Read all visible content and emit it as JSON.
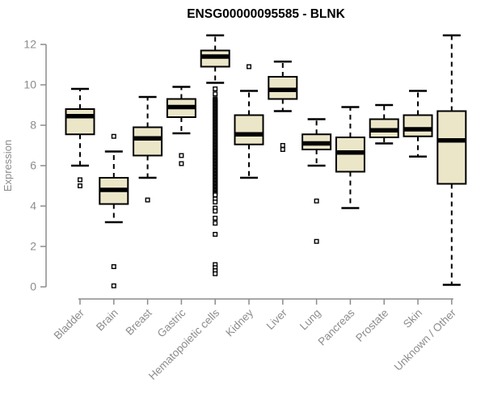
{
  "page": {
    "background": "#ffffff"
  },
  "chart_data": {
    "type": "boxplot",
    "title": "ENSG00000095585 - BLNK",
    "ylabel": "Expression",
    "xlabel": "",
    "ylim": [
      0,
      12.5
    ],
    "yticks": [
      0,
      2,
      4,
      6,
      8,
      10,
      12
    ],
    "grid": false,
    "legend": false,
    "categories": [
      "Bladder",
      "Brain",
      "Breast",
      "Gastric",
      "Hematopoietic cells",
      "Kidney",
      "Liver",
      "Lung",
      "Pancreas",
      "Prostate",
      "Skin",
      "Unknown / Other"
    ],
    "series": [
      {
        "name": "Bladder",
        "low": 6.0,
        "q1": 7.55,
        "median": 8.45,
        "q3": 8.8,
        "high": 9.8,
        "outliers": [
          5.3,
          5.0
        ]
      },
      {
        "name": "Brain",
        "low": 3.2,
        "q1": 4.1,
        "median": 4.8,
        "q3": 5.4,
        "high": 6.7,
        "outliers": [
          7.45,
          1.0,
          0.05
        ]
      },
      {
        "name": "Breast",
        "low": 5.4,
        "q1": 6.5,
        "median": 7.35,
        "q3": 7.9,
        "high": 9.4,
        "outliers": [
          4.3
        ]
      },
      {
        "name": "Gastric",
        "low": 7.6,
        "q1": 8.4,
        "median": 8.9,
        "q3": 9.3,
        "high": 9.9,
        "outliers": [
          6.5,
          6.1
        ]
      },
      {
        "name": "Hematopoietic cells",
        "low": 10.1,
        "q1": 10.9,
        "median": 11.4,
        "q3": 11.7,
        "high": 12.45,
        "outliers": [
          9.8,
          9.55,
          4.35,
          4.2,
          3.9,
          3.75,
          3.4,
          3.15,
          2.6,
          1.1,
          0.95,
          0.8,
          0.65
        ],
        "outliers_dense_band": {
          "from": 9.3,
          "to": 4.55,
          "count": 90
        }
      },
      {
        "name": "Kidney",
        "low": 5.4,
        "q1": 7.05,
        "median": 7.55,
        "q3": 8.5,
        "high": 9.7,
        "outliers": [
          10.9
        ]
      },
      {
        "name": "Liver",
        "low": 8.7,
        "q1": 9.3,
        "median": 9.75,
        "q3": 10.4,
        "high": 11.15,
        "outliers": [
          7.0,
          6.8
        ]
      },
      {
        "name": "Lung",
        "low": 6.0,
        "q1": 6.8,
        "median": 7.1,
        "q3": 7.55,
        "high": 8.3,
        "outliers": [
          4.25,
          2.25
        ]
      },
      {
        "name": "Pancreas",
        "low": 3.9,
        "q1": 5.7,
        "median": 6.65,
        "q3": 7.4,
        "high": 8.9,
        "outliers": []
      },
      {
        "name": "Prostate",
        "low": 7.1,
        "q1": 7.4,
        "median": 7.75,
        "q3": 8.3,
        "high": 9.0,
        "outliers": []
      },
      {
        "name": "Skin",
        "low": 6.45,
        "q1": 7.45,
        "median": 7.8,
        "q3": 8.5,
        "high": 9.7,
        "outliers": []
      },
      {
        "name": "Unknown / Other",
        "low": 0.1,
        "q1": 5.1,
        "median": 7.25,
        "q3": 8.7,
        "high": 12.45,
        "outliers": []
      }
    ],
    "colors": {
      "box_fill": "#ece6c9",
      "box_border": "#000000",
      "median": "#000000",
      "whisker": "#000000",
      "outlier_stroke": "#000000",
      "outlier_fill": "#ffffff",
      "axis": "#8c8c8c",
      "tick_label": "#8c8c8c",
      "title": "#000000"
    }
  }
}
